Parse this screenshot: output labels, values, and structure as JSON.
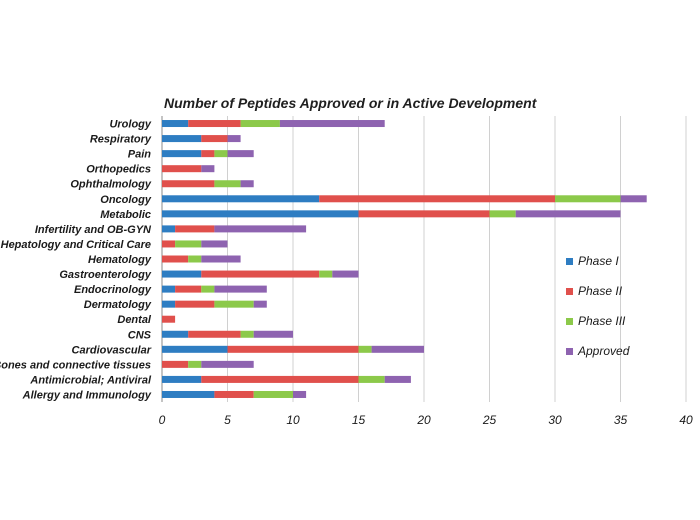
{
  "chart_data": {
    "type": "bar",
    "orientation": "horizontal",
    "stacked": true,
    "title": "Number of Peptides Approved or in Active Development",
    "xlabel": "",
    "ylabel": "",
    "xlim": [
      0,
      40
    ],
    "xticks": [
      "0",
      "5",
      "10",
      "15",
      "20",
      "25",
      "30",
      "35",
      "40"
    ],
    "grid": true,
    "legend_position": "right",
    "categories": [
      "Urology",
      "Respiratory",
      "Pain",
      "Orthopedics",
      "Ophthalmology",
      "Oncology",
      "Metabolic",
      "Infertility and OB-GYN",
      "Hepatology and Critical Care",
      "Hematology",
      "Gastroenterology",
      "Endocrinology",
      "Dermatology",
      "Dental",
      "CNS",
      "Cardiovascular",
      "Bones and connective tissues",
      "Antimicrobial; Antiviral",
      "Allergy and Immunology"
    ],
    "series": [
      {
        "name": "Phase I",
        "color": "#2e7dc2",
        "values": [
          2,
          3,
          3,
          0,
          0,
          12,
          15,
          1,
          0,
          0,
          3,
          1,
          1,
          0,
          2,
          5,
          0,
          3,
          4
        ]
      },
      {
        "name": "Phase II",
        "color": "#e0504c",
        "values": [
          4,
          2,
          1,
          3,
          4,
          18,
          10,
          3,
          1,
          2,
          9,
          2,
          3,
          1,
          4,
          10,
          2,
          12,
          3
        ]
      },
      {
        "name": "Phase III",
        "color": "#8cc94a",
        "values": [
          3,
          0,
          1,
          0,
          2,
          5,
          2,
          0,
          2,
          1,
          1,
          1,
          3,
          0,
          1,
          1,
          1,
          2,
          3
        ]
      },
      {
        "name": "Approved",
        "color": "#8e63b0",
        "values": [
          8,
          1,
          2,
          1,
          1,
          2,
          8,
          7,
          2,
          3,
          2,
          4,
          1,
          0,
          3,
          4,
          4,
          2,
          1
        ]
      }
    ]
  }
}
